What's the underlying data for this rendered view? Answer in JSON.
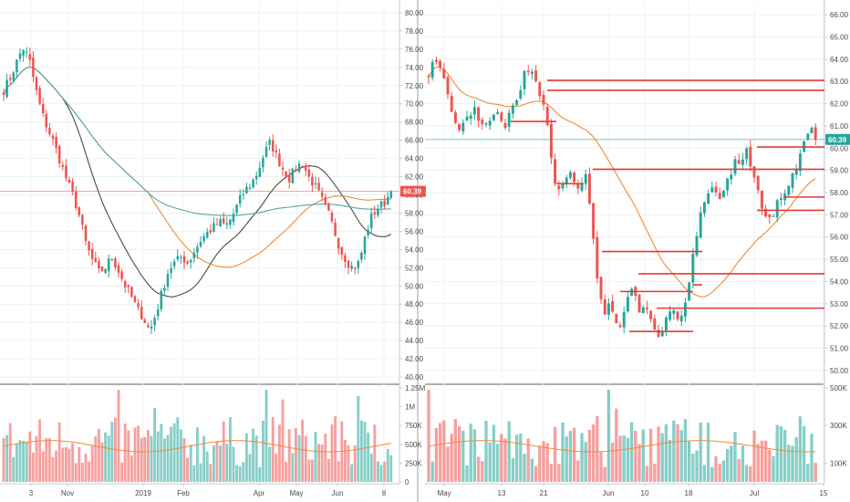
{
  "chart_data": [
    {
      "type": "candlestick",
      "panel": "left",
      "price_axis": {
        "ylim": [
          39.5,
          81.0
        ],
        "ticks": [
          "40.00",
          "42.00",
          "44.00",
          "46.00",
          "48.00",
          "50.00",
          "52.00",
          "54.00",
          "56.00",
          "58.00",
          "60.00",
          "62.00",
          "64.00",
          "66.00",
          "68.00",
          "70.00",
          "72.00",
          "74.00",
          "76.00",
          "78.00",
          "80.00"
        ]
      },
      "x_labels": [
        "3",
        "Nov",
        "2019",
        "Feb",
        "Apr",
        "May",
        "Jun",
        "8"
      ],
      "last_price": "60.39",
      "last_price_color": "#ef5350",
      "close_path": [
        71.5,
        72.8,
        74.5,
        76.2,
        75.0,
        71.8,
        69.0,
        67.2,
        65.5,
        63.5,
        61.5,
        59.8,
        57.5,
        54.5,
        52.8,
        51.5,
        52.0,
        53.2,
        51.8,
        50.2,
        49.0,
        47.5,
        46.5,
        45.0,
        47.0,
        49.5,
        51.8,
        52.6,
        53.2,
        52.5,
        53.8,
        55.0,
        55.8,
        56.4,
        57.0,
        56.6,
        57.6,
        59.2,
        60.5,
        61.2,
        62.5,
        64.5,
        65.8,
        64.2,
        62.8,
        61.8,
        62.9,
        63.6,
        62.0,
        61.0,
        59.6,
        58.2,
        56.2,
        54.0,
        52.8,
        51.9,
        52.6,
        55.6,
        57.8,
        58.6,
        59.2,
        60.39
      ],
      "volume_axis": {
        "ylim": [
          0,
          1250000
        ],
        "ticks": [
          "0",
          "250K",
          "500K",
          "750K",
          "1M",
          "1.25M"
        ]
      },
      "moving_averages": [
        {
          "color": "#4b4b40"
        },
        {
          "color": "#f08a3c"
        },
        {
          "color": "#4ea9a6"
        }
      ]
    },
    {
      "type": "candlestick",
      "panel": "right",
      "price_axis": {
        "ylim": [
          49.5,
          66.5
        ],
        "ticks": [
          "50.00",
          "51.00",
          "52.00",
          "53.00",
          "54.00",
          "55.00",
          "56.00",
          "57.00",
          "58.00",
          "59.00",
          "60.00",
          "61.00",
          "62.00",
          "63.00",
          "64.00",
          "65.00",
          "66.00"
        ]
      },
      "x_labels": [
        "May",
        "13",
        "21",
        "Jun",
        "10",
        "18",
        "Jul",
        "15"
      ],
      "last_price": "60.39",
      "last_price_color": "#26a69a",
      "close_path": [
        63.4,
        63.9,
        63.6,
        63.0,
        62.1,
        61.2,
        60.6,
        61.4,
        61.1,
        61.8,
        61.2,
        60.9,
        61.0,
        61.7,
        61.3,
        60.8,
        61.4,
        62.0,
        62.6,
        63.3,
        63.6,
        63.3,
        62.6,
        61.7,
        60.4,
        58.4,
        58.1,
        58.7,
        58.9,
        58.3,
        58.0,
        59.1,
        57.6,
        55.3,
        53.2,
        52.6,
        53.1,
        52.3,
        51.6,
        52.9,
        53.8,
        53.4,
        52.7,
        53.0,
        52.3,
        51.7,
        51.3,
        52.1,
        52.8,
        52.5,
        52.2,
        53.1,
        54.2,
        55.6,
        56.8,
        57.6,
        57.9,
        58.3,
        57.8,
        58.1,
        58.9,
        59.4,
        59.2,
        60.0,
        59.3,
        58.7,
        57.6,
        56.7,
        56.9,
        57.3,
        57.7,
        57.9,
        58.4,
        59.0,
        59.6,
        60.6,
        60.8,
        60.39
      ],
      "support_resistance_levels": [
        63.05,
        62.6,
        61.2,
        59.05,
        58.4,
        57.8,
        57.2,
        55.35,
        54.35,
        53.85,
        53.55,
        52.8,
        51.75,
        60.05
      ],
      "volume_axis": {
        "ylim": [
          0,
          500000
        ],
        "ticks": [
          "100K",
          "300K",
          "500K"
        ]
      },
      "moving_averages": [
        {
          "color": "#f08a3c"
        }
      ]
    }
  ]
}
